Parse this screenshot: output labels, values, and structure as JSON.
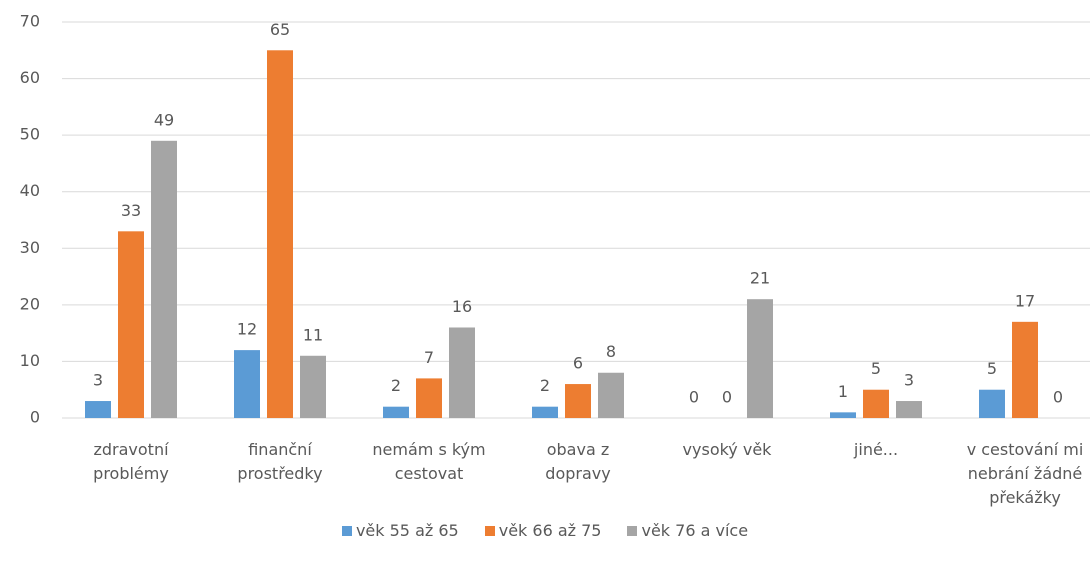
{
  "chart_data": {
    "type": "bar",
    "categories": [
      "zdravotní\nproblémy",
      "finanční\nprostředky",
      "nemám s kým\ncestovat",
      "obava z\ndopravy",
      "vysoký věk",
      "jiné...",
      "v cestování mi\nnebrání žádné\npřekážky"
    ],
    "series": [
      {
        "name": "věk 55 až 65",
        "color": "#5b9bd5",
        "values": [
          3,
          12,
          2,
          2,
          0,
          1,
          5
        ]
      },
      {
        "name": "věk 66 až 75",
        "color": "#ed7d31",
        "values": [
          33,
          65,
          7,
          6,
          0,
          5,
          17
        ]
      },
      {
        "name": "věk 76 a více",
        "color": "#a5a5a5",
        "values": [
          49,
          11,
          16,
          8,
          21,
          3,
          0
        ]
      }
    ],
    "ylim": [
      0,
      70
    ],
    "yticks": [
      0,
      10,
      20,
      30,
      40,
      50,
      60,
      70
    ],
    "grid": true,
    "legend": "bottom"
  }
}
